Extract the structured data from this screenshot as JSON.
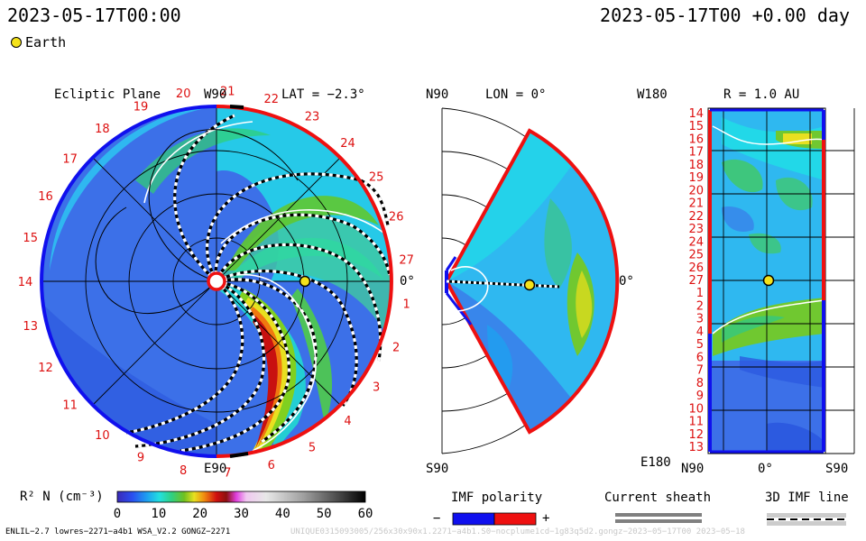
{
  "header": {
    "date_left": "2023-05-17T00:00",
    "date_right": "2023-05-17T00 +0.00 day",
    "earth_label": "Earth"
  },
  "panel_ecliptic": {
    "title": "Ecliptic Plane",
    "top_label": "W90",
    "lat_label": "LAT = −2.3°",
    "bottom_label": "E90",
    "right_label": "0°",
    "carrington_numbers": [
      "1",
      "2",
      "3",
      "4",
      "5",
      "6",
      "7",
      "8",
      "9",
      "10",
      "11",
      "12",
      "13",
      "14",
      "15",
      "16",
      "17",
      "18",
      "19",
      "20",
      "21",
      "22",
      "23",
      "24",
      "25",
      "26",
      "27"
    ]
  },
  "panel_meridional": {
    "top_label": "N90",
    "lon_label": "LON = 0°",
    "bottom_label": "S90",
    "right_label": "0°"
  },
  "panel_radial": {
    "top_label": "W180",
    "r_label": "R = 1.0 AU",
    "bottom_left_label": "E180",
    "bottom_n_label": "N90",
    "bottom_center_label": "0°",
    "bottom_s_label": "S90",
    "row_numbers": [
      "14",
      "15",
      "16",
      "17",
      "18",
      "19",
      "20",
      "21",
      "22",
      "23",
      "24",
      "25",
      "26",
      "27",
      "1",
      "2",
      "3",
      "4",
      "5",
      "6",
      "7",
      "8",
      "9",
      "10",
      "11",
      "12",
      "13"
    ]
  },
  "colorbar": {
    "label": "R² N (cm⁻³)",
    "ticks": [
      "0",
      "10",
      "20",
      "30",
      "40",
      "50",
      "60"
    ],
    "range": [
      0,
      60
    ]
  },
  "legend": {
    "imf_polarity": "IMF polarity",
    "minus": "−",
    "plus": "+",
    "current_sheath": "Current sheath",
    "imf_line": "3D IMF line",
    "colors": {
      "negative": "#1010ee",
      "positive": "#ee1010"
    }
  },
  "footer": {
    "left": "ENLIL−2.7 lowres−2271−a4b1 WSA_V2.2 GONGZ−2271",
    "right": "UNIQUE0315093005/256x30x90x1.2271−a4b1.S0−nocplume1cd−1g83q5d2.gongz−2023−05−17T00   2023−05−18"
  }
}
